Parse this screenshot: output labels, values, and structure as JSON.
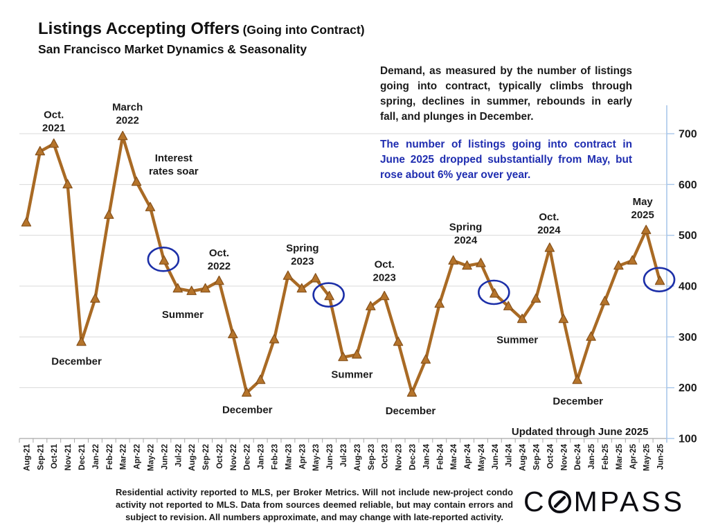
{
  "header": {
    "title_main": "Listings Accepting Offers",
    "title_paren": "(Going into Contract)",
    "subtitle": "San Francisco Market Dynamics & Seasonality"
  },
  "commentary": {
    "paragraph1": "Demand, as measured by the number of listings going into contract, typically climbs through spring, declines in summer, rebounds in early fall, and plunges in December.",
    "paragraph2": "The number of listings going into contract in June 2025 dropped substantially from May, but rose about 6% year over year.",
    "highlight_color": "#1f2db0"
  },
  "chart_data": {
    "type": "line",
    "title": "Listings Accepting Offers (Going into Contract)",
    "subtitle": "San Francisco Market Dynamics & Seasonality",
    "xlabel": "",
    "ylabel": "",
    "ylim": [
      100,
      700
    ],
    "yticks": [
      100,
      200,
      300,
      400,
      500,
      600,
      700
    ],
    "grid": true,
    "legend_position": "none",
    "x": [
      "Aug-21",
      "Sep-21",
      "Oct-21",
      "Nov-21",
      "Dec-21",
      "Jan-22",
      "Feb-22",
      "Mar-22",
      "Apr-22",
      "May-22",
      "Jun-22",
      "Jul-22",
      "Aug-22",
      "Sep-22",
      "Oct-22",
      "Nov-22",
      "Dec-22",
      "Jan-23",
      "Feb-23",
      "Mar-23",
      "Apr-23",
      "May-23",
      "Jun-23",
      "Jul-23",
      "Aug-23",
      "Sep-23",
      "Oct-23",
      "Nov-23",
      "Dec-23",
      "Jan-24",
      "Feb-24",
      "Mar-24",
      "Apr-24",
      "May-24",
      "Jun-24",
      "Jul-24",
      "Aug-24",
      "Sep-24",
      "Oct-24",
      "Nov-24",
      "Dec-24",
      "Jan-25",
      "Feb-25",
      "Mar-25",
      "Apr-25",
      "May-25",
      "Jun-25"
    ],
    "values": [
      525,
      665,
      680,
      600,
      290,
      375,
      540,
      695,
      605,
      555,
      450,
      395,
      390,
      395,
      410,
      305,
      190,
      215,
      295,
      420,
      395,
      415,
      380,
      260,
      265,
      360,
      380,
      290,
      190,
      255,
      365,
      450,
      440,
      445,
      385,
      360,
      335,
      375,
      475,
      335,
      215,
      300,
      370,
      440,
      450,
      510,
      410
    ],
    "circled_months": [
      "Jun-22",
      "Jun-23",
      "Jun-24",
      "Jun-25"
    ],
    "annotations": [
      {
        "lines": [
          "Oct.",
          "2021"
        ],
        "xi": 2.0,
        "v": 725
      },
      {
        "lines": [
          "March",
          "2022"
        ],
        "xi": 7.35,
        "v": 740
      },
      {
        "lines": [
          "Interest",
          "rates soar"
        ],
        "xi": 10.7,
        "v": 640
      },
      {
        "lines": [
          "December"
        ],
        "xi": 3.65,
        "v": 253
      },
      {
        "lines": [
          "Summer"
        ],
        "xi": 11.36,
        "v": 345
      },
      {
        "lines": [
          "Oct.",
          "2022"
        ],
        "xi": 14.0,
        "v": 453
      },
      {
        "lines": [
          "December"
        ],
        "xi": 16.05,
        "v": 157
      },
      {
        "lines": [
          "Spring",
          "2023"
        ],
        "xi": 20.05,
        "v": 463
      },
      {
        "lines": [
          "Summer"
        ],
        "xi": 23.65,
        "v": 227
      },
      {
        "lines": [
          "Oct.",
          "2023"
        ],
        "xi": 26.0,
        "v": 431
      },
      {
        "lines": [
          "December"
        ],
        "xi": 27.9,
        "v": 155
      },
      {
        "lines": [
          "Spring",
          "2024"
        ],
        "xi": 31.9,
        "v": 504
      },
      {
        "lines": [
          "Summer"
        ],
        "xi": 35.65,
        "v": 295
      },
      {
        "lines": [
          "Oct.",
          "2024"
        ],
        "xi": 37.95,
        "v": 524
      },
      {
        "lines": [
          "December"
        ],
        "xi": 40.05,
        "v": 174
      },
      {
        "lines": [
          "May",
          "2025"
        ],
        "xi": 44.75,
        "v": 554
      },
      {
        "lines": [
          "Updated through June 2025"
        ],
        "xi": 40.2,
        "v": 114
      }
    ],
    "colors": {
      "line": "#a96a24",
      "marker_fill": "#b5742b",
      "marker_edge": "#85501a",
      "highlight_circle": "#1c2fa8",
      "right_axis": "#a8c6ea",
      "bottom_axis": "#a6a6a6",
      "grid": "#d9d9d9"
    }
  },
  "footer": {
    "disclaimer": "Residential activity reported to MLS, per Broker Metrics. Will not include new-project condo activity not reported to MLS. Data from sources deemed reliable, but may contain errors and subject to revision. All numbers approximate, and may change with late-reported activity.",
    "logo_text": "COMPASS"
  }
}
